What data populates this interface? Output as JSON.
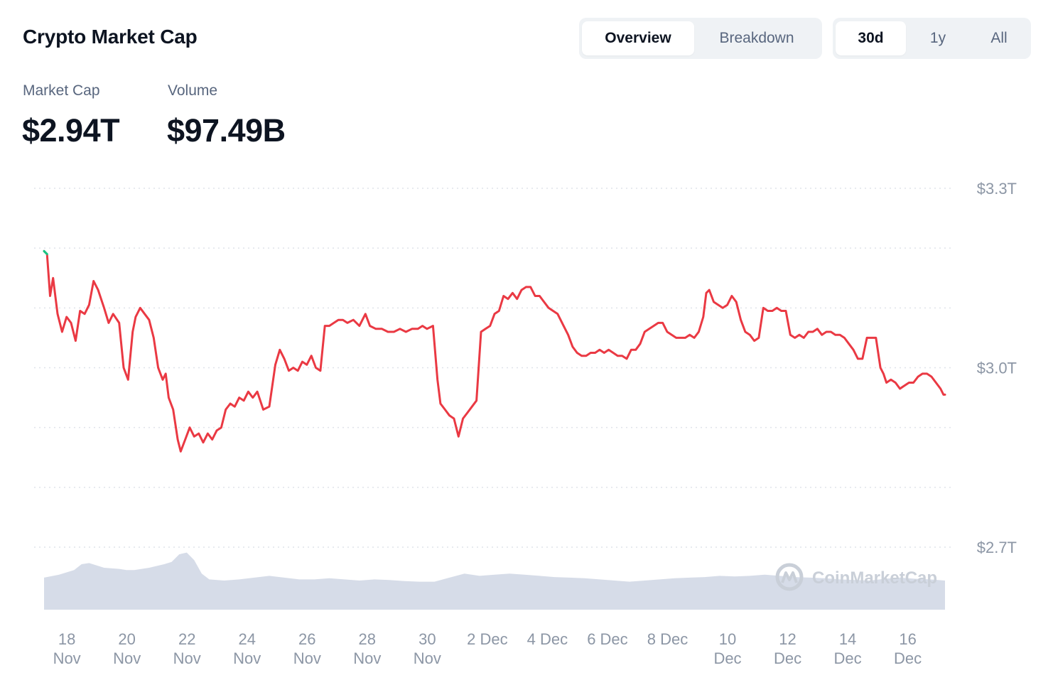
{
  "title": "Crypto Market Cap",
  "view_tabs": [
    {
      "label": "Overview",
      "active": true
    },
    {
      "label": "Breakdown",
      "active": false
    }
  ],
  "range_tabs": [
    {
      "label": "30d",
      "active": true
    },
    {
      "label": "1y",
      "active": false
    },
    {
      "label": "All",
      "active": false
    }
  ],
  "stats": {
    "market_cap_label": "Market Cap",
    "market_cap_value": "$2.94T",
    "volume_label": "Volume",
    "volume_value": "$97.49B"
  },
  "watermark": "CoinMarketCap",
  "colors": {
    "line": "#ea3943",
    "line_start": "#16c784",
    "volume": "#cfd6e4",
    "grid": "#dfe3ea",
    "axis_text": "#8c96a5"
  },
  "chart_data": {
    "type": "line",
    "title": "",
    "ylabel": "",
    "y_ticks": [
      {
        "value": 3.3,
        "label": "$3.3T"
      },
      {
        "value": 3.0,
        "label": "$3.0T"
      },
      {
        "value": 2.7,
        "label": "$2.7T"
      }
    ],
    "ylim": [
      2.7,
      3.3
    ],
    "grid": true,
    "x_ticks": [
      {
        "t": 0.5,
        "line1": "18",
        "line2": "Nov"
      },
      {
        "t": 2.5,
        "line1": "20",
        "line2": "Nov"
      },
      {
        "t": 4.5,
        "line1": "22",
        "line2": "Nov"
      },
      {
        "t": 6.5,
        "line1": "24",
        "line2": "Nov"
      },
      {
        "t": 8.5,
        "line1": "26",
        "line2": "Nov"
      },
      {
        "t": 10.5,
        "line1": "28",
        "line2": "Nov"
      },
      {
        "t": 12.5,
        "line1": "30",
        "line2": "Nov"
      },
      {
        "t": 14.5,
        "line1": "2 Dec",
        "line2": ""
      },
      {
        "t": 16.5,
        "line1": "4 Dec",
        "line2": ""
      },
      {
        "t": 18.5,
        "line1": "6 Dec",
        "line2": ""
      },
      {
        "t": 20.5,
        "line1": "8 Dec",
        "line2": ""
      },
      {
        "t": 22.5,
        "line1": "10",
        "line2": "Dec"
      },
      {
        "t": 24.5,
        "line1": "12",
        "line2": "Dec"
      },
      {
        "t": 26.5,
        "line1": "14",
        "line2": "Dec"
      },
      {
        "t": 28.5,
        "line1": "16",
        "line2": "Dec"
      }
    ],
    "series": [
      {
        "values": [
          [
            0.0,
            3.195
          ],
          [
            0.1,
            3.19
          ],
          [
            0.2,
            3.12
          ],
          [
            0.3,
            3.15
          ],
          [
            0.45,
            3.09
          ],
          [
            0.6,
            3.06
          ],
          [
            0.75,
            3.085
          ],
          [
            0.9,
            3.075
          ],
          [
            1.05,
            3.045
          ],
          [
            1.2,
            3.095
          ],
          [
            1.35,
            3.09
          ],
          [
            1.5,
            3.105
          ],
          [
            1.65,
            3.145
          ],
          [
            1.8,
            3.13
          ],
          [
            2.0,
            3.1
          ],
          [
            2.15,
            3.075
          ],
          [
            2.3,
            3.09
          ],
          [
            2.5,
            3.075
          ],
          [
            2.65,
            3.0
          ],
          [
            2.8,
            2.98
          ],
          [
            2.95,
            3.06
          ],
          [
            3.05,
            3.085
          ],
          [
            3.2,
            3.1
          ],
          [
            3.35,
            3.09
          ],
          [
            3.5,
            3.08
          ],
          [
            3.65,
            3.05
          ],
          [
            3.8,
            3.0
          ],
          [
            3.95,
            2.98
          ],
          [
            4.05,
            2.99
          ],
          [
            4.15,
            2.95
          ],
          [
            4.3,
            2.93
          ],
          [
            4.45,
            2.88
          ],
          [
            4.55,
            2.86
          ],
          [
            4.7,
            2.88
          ],
          [
            4.85,
            2.9
          ],
          [
            5.0,
            2.885
          ],
          [
            5.15,
            2.89
          ],
          [
            5.3,
            2.875
          ],
          [
            5.45,
            2.89
          ],
          [
            5.6,
            2.88
          ],
          [
            5.75,
            2.895
          ],
          [
            5.9,
            2.9
          ],
          [
            6.05,
            2.93
          ],
          [
            6.2,
            2.94
          ],
          [
            6.35,
            2.935
          ],
          [
            6.5,
            2.95
          ],
          [
            6.65,
            2.945
          ],
          [
            6.8,
            2.96
          ],
          [
            6.95,
            2.95
          ],
          [
            7.1,
            2.96
          ],
          [
            7.3,
            2.93
          ],
          [
            7.5,
            2.935
          ],
          [
            7.7,
            3.005
          ],
          [
            7.85,
            3.03
          ],
          [
            8.0,
            3.015
          ],
          [
            8.15,
            2.995
          ],
          [
            8.3,
            3.0
          ],
          [
            8.45,
            2.995
          ],
          [
            8.6,
            3.01
          ],
          [
            8.75,
            3.005
          ],
          [
            8.9,
            3.02
          ],
          [
            9.05,
            3.0
          ],
          [
            9.2,
            2.995
          ],
          [
            9.35,
            3.07
          ],
          [
            9.5,
            3.07
          ],
          [
            9.65,
            3.075
          ],
          [
            9.8,
            3.08
          ],
          [
            9.95,
            3.08
          ],
          [
            10.1,
            3.075
          ],
          [
            10.3,
            3.08
          ],
          [
            10.5,
            3.07
          ],
          [
            10.7,
            3.09
          ],
          [
            10.85,
            3.07
          ],
          [
            11.05,
            3.065
          ],
          [
            11.25,
            3.065
          ],
          [
            11.45,
            3.06
          ],
          [
            11.65,
            3.06
          ],
          [
            11.85,
            3.065
          ],
          [
            12.05,
            3.06
          ],
          [
            12.25,
            3.065
          ],
          [
            12.45,
            3.065
          ],
          [
            12.6,
            3.07
          ],
          [
            12.75,
            3.065
          ],
          [
            12.95,
            3.07
          ],
          [
            13.1,
            2.98
          ],
          [
            13.2,
            2.94
          ],
          [
            13.35,
            2.93
          ],
          [
            13.5,
            2.92
          ],
          [
            13.65,
            2.915
          ],
          [
            13.8,
            2.885
          ],
          [
            13.95,
            2.915
          ],
          [
            14.1,
            2.925
          ],
          [
            14.25,
            2.935
          ],
          [
            14.4,
            2.945
          ],
          [
            14.55,
            3.06
          ],
          [
            14.7,
            3.065
          ],
          [
            14.85,
            3.07
          ],
          [
            15.0,
            3.09
          ],
          [
            15.15,
            3.095
          ],
          [
            15.3,
            3.12
          ],
          [
            15.45,
            3.115
          ],
          [
            15.6,
            3.125
          ],
          [
            15.75,
            3.115
          ],
          [
            15.9,
            3.13
          ],
          [
            16.05,
            3.135
          ],
          [
            16.2,
            3.135
          ],
          [
            16.35,
            3.12
          ],
          [
            16.5,
            3.12
          ],
          [
            16.65,
            3.11
          ],
          [
            16.8,
            3.1
          ],
          [
            16.95,
            3.095
          ],
          [
            17.1,
            3.09
          ],
          [
            17.3,
            3.07
          ],
          [
            17.45,
            3.055
          ],
          [
            17.6,
            3.035
          ],
          [
            17.75,
            3.025
          ],
          [
            17.9,
            3.02
          ],
          [
            18.05,
            3.02
          ],
          [
            18.2,
            3.025
          ],
          [
            18.35,
            3.025
          ],
          [
            18.5,
            3.03
          ],
          [
            18.65,
            3.025
          ],
          [
            18.8,
            3.03
          ],
          [
            18.95,
            3.025
          ],
          [
            19.1,
            3.02
          ],
          [
            19.25,
            3.02
          ],
          [
            19.4,
            3.015
          ],
          [
            19.55,
            3.03
          ],
          [
            19.7,
            3.03
          ],
          [
            19.85,
            3.04
          ],
          [
            20.0,
            3.06
          ],
          [
            20.15,
            3.065
          ],
          [
            20.3,
            3.07
          ],
          [
            20.45,
            3.075
          ],
          [
            20.6,
            3.075
          ],
          [
            20.75,
            3.06
          ],
          [
            20.9,
            3.055
          ],
          [
            21.05,
            3.05
          ],
          [
            21.2,
            3.05
          ],
          [
            21.35,
            3.05
          ],
          [
            21.5,
            3.055
          ],
          [
            21.65,
            3.05
          ],
          [
            21.8,
            3.06
          ],
          [
            21.95,
            3.085
          ],
          [
            22.05,
            3.125
          ],
          [
            22.15,
            3.13
          ],
          [
            22.3,
            3.11
          ],
          [
            22.45,
            3.105
          ],
          [
            22.6,
            3.1
          ],
          [
            22.75,
            3.105
          ],
          [
            22.9,
            3.12
          ],
          [
            23.05,
            3.11
          ],
          [
            23.2,
            3.08
          ],
          [
            23.35,
            3.06
          ],
          [
            23.5,
            3.055
          ],
          [
            23.65,
            3.045
          ],
          [
            23.8,
            3.05
          ],
          [
            23.95,
            3.1
          ],
          [
            24.1,
            3.095
          ],
          [
            24.25,
            3.095
          ],
          [
            24.4,
            3.1
          ],
          [
            24.55,
            3.095
          ],
          [
            24.7,
            3.095
          ],
          [
            24.85,
            3.055
          ],
          [
            25.0,
            3.05
          ],
          [
            25.15,
            3.055
          ],
          [
            25.3,
            3.05
          ],
          [
            25.45,
            3.06
          ],
          [
            25.6,
            3.06
          ],
          [
            25.75,
            3.065
          ],
          [
            25.9,
            3.055
          ],
          [
            26.05,
            3.06
          ],
          [
            26.2,
            3.06
          ],
          [
            26.35,
            3.055
          ],
          [
            26.5,
            3.055
          ],
          [
            26.65,
            3.05
          ],
          [
            26.8,
            3.04
          ],
          [
            26.95,
            3.03
          ],
          [
            27.1,
            3.015
          ],
          [
            27.25,
            3.015
          ],
          [
            27.4,
            3.05
          ],
          [
            27.55,
            3.05
          ],
          [
            27.7,
            3.05
          ],
          [
            27.85,
            3.0
          ],
          [
            27.95,
            2.99
          ],
          [
            28.05,
            2.975
          ],
          [
            28.2,
            2.98
          ],
          [
            28.35,
            2.975
          ],
          [
            28.5,
            2.965
          ],
          [
            28.65,
            2.97
          ],
          [
            28.8,
            2.975
          ],
          [
            28.95,
            2.975
          ],
          [
            29.1,
            2.985
          ],
          [
            29.25,
            2.99
          ],
          [
            29.4,
            2.99
          ],
          [
            29.55,
            2.985
          ],
          [
            29.7,
            2.975
          ],
          [
            29.85,
            2.965
          ],
          [
            29.95,
            2.955
          ],
          [
            30.0,
            2.955
          ]
        ]
      }
    ],
    "volume": [
      [
        0.0,
        55
      ],
      [
        0.5,
        60
      ],
      [
        1.0,
        68
      ],
      [
        1.25,
        78
      ],
      [
        1.5,
        80
      ],
      [
        2.0,
        72
      ],
      [
        2.5,
        70
      ],
      [
        2.75,
        68
      ],
      [
        3.0,
        68
      ],
      [
        3.25,
        70
      ],
      [
        3.5,
        72
      ],
      [
        4.0,
        78
      ],
      [
        4.25,
        82
      ],
      [
        4.5,
        95
      ],
      [
        4.75,
        98
      ],
      [
        5.0,
        85
      ],
      [
        5.25,
        62
      ],
      [
        5.5,
        52
      ],
      [
        6.0,
        50
      ],
      [
        6.5,
        52
      ],
      [
        7.0,
        55
      ],
      [
        7.5,
        58
      ],
      [
        8.0,
        55
      ],
      [
        8.5,
        52
      ],
      [
        9.0,
        52
      ],
      [
        9.5,
        54
      ],
      [
        10.0,
        52
      ],
      [
        10.5,
        50
      ],
      [
        11.0,
        52
      ],
      [
        11.5,
        51
      ],
      [
        12.0,
        49
      ],
      [
        12.5,
        48
      ],
      [
        13.0,
        48
      ],
      [
        13.5,
        55
      ],
      [
        14.0,
        62
      ],
      [
        14.5,
        58
      ],
      [
        15.0,
        60
      ],
      [
        15.5,
        62
      ],
      [
        16.0,
        60
      ],
      [
        16.5,
        58
      ],
      [
        17.0,
        56
      ],
      [
        17.5,
        55
      ],
      [
        18.0,
        54
      ],
      [
        18.5,
        52
      ],
      [
        19.0,
        50
      ],
      [
        19.5,
        48
      ],
      [
        20.0,
        50
      ],
      [
        20.5,
        52
      ],
      [
        21.0,
        54
      ],
      [
        21.5,
        55
      ],
      [
        22.0,
        56
      ],
      [
        22.5,
        58
      ],
      [
        23.0,
        57
      ],
      [
        23.5,
        58
      ],
      [
        24.0,
        60
      ],
      [
        24.5,
        58
      ],
      [
        25.0,
        56
      ],
      [
        25.5,
        55
      ],
      [
        26.0,
        54
      ],
      [
        26.5,
        52
      ],
      [
        27.0,
        51
      ],
      [
        27.5,
        50
      ],
      [
        28.0,
        53
      ],
      [
        28.5,
        55
      ],
      [
        29.0,
        53
      ],
      [
        29.5,
        52
      ],
      [
        30.0,
        50
      ]
    ]
  }
}
